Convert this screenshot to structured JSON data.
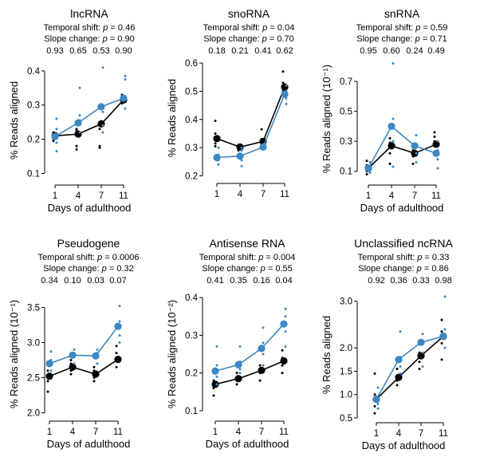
{
  "colors": {
    "old": "#3b88c4",
    "young": "#000000"
  },
  "chart_data": [
    {
      "type": "line",
      "title": "lncRNA",
      "temporal_shift": "Temporal shift: p = 0.46",
      "slope_change": "Slope change: p = 0.90",
      "pvalues": [
        "0.93",
        "0.65",
        "0.53",
        "0.90"
      ],
      "x": [
        1,
        4,
        7,
        11
      ],
      "xticks": [
        "1",
        "4",
        "7",
        "11"
      ],
      "xlabel": "Days of adulthood",
      "ylabel": "% Reads aligned",
      "ylim": [
        0.08,
        0.43
      ],
      "yticks": [
        0.1,
        0.2,
        0.3,
        0.4
      ],
      "ytick_labels": [
        "0.1",
        "0.2",
        "0.3",
        "0.4"
      ],
      "series": [
        {
          "name": "black",
          "color": "#000000",
          "values": [
            0.21,
            0.215,
            0.245,
            0.315
          ],
          "replicates": [
            [
              0.2,
              0.195,
              0.215,
              0.22
            ],
            [
              0.17,
              0.18,
              0.225,
              0.23
            ],
            [
              0.175,
              0.18,
              0.23,
              0.25
            ],
            [
              0.32,
              0.305,
              0.31,
              0.33
            ]
          ]
        },
        {
          "name": "blue",
          "color": "#3b88c4",
          "values": [
            0.208,
            0.248,
            0.295,
            0.32
          ],
          "replicates": [
            [
              0.165,
              0.19,
              0.23,
              0.26
            ],
            [
              0.22,
              0.255,
              0.27,
              0.35
            ],
            [
              0.22,
              0.24,
              0.28,
              0.41
            ],
            [
              0.29,
              0.32,
              0.375,
              0.385
            ]
          ]
        }
      ]
    },
    {
      "type": "line",
      "title": "snoRNA",
      "temporal_shift": "Temporal shift: p = 0.04",
      "slope_change": "Slope change: p = 0.70",
      "pvalues": [
        "0.18",
        "0.21",
        "0.41",
        "0.62"
      ],
      "x": [
        1,
        4,
        7,
        11
      ],
      "xticks": [
        "1",
        "4",
        "7",
        "11"
      ],
      "xlabel": "",
      "ylabel": "% Reads aligned",
      "ylim": [
        0.19,
        0.62
      ],
      "yticks": [
        0.2,
        0.3,
        0.4,
        0.5,
        0.6
      ],
      "ytick_labels": [
        "0.2",
        "0.3",
        "0.4",
        "0.5",
        "0.6"
      ],
      "series": [
        {
          "name": "black",
          "color": "#000000",
          "values": [
            0.332,
            0.302,
            0.322,
            0.515
          ],
          "replicates": [
            [
              0.305,
              0.315,
              0.35,
              0.395
            ],
            [
              0.27,
              0.29,
              0.295,
              0.31
            ],
            [
              0.31,
              0.32,
              0.33,
              0.365
            ],
            [
              0.49,
              0.5,
              0.53,
              0.57
            ]
          ]
        },
        {
          "name": "blue",
          "color": "#3b88c4",
          "values": [
            0.265,
            0.27,
            0.302,
            0.49
          ],
          "replicates": [
            [
              0.24,
              0.255,
              0.275,
              0.3
            ],
            [
              0.235,
              0.255,
              0.29,
              0.3
            ],
            [
              0.295,
              0.3,
              0.31,
              0.315
            ],
            [
              0.455,
              0.475,
              0.5,
              0.52
            ]
          ]
        }
      ]
    },
    {
      "type": "line",
      "title": "snRNA",
      "temporal_shift": "Temporal shift: p = 0.59",
      "slope_change": "Slope change: p = 0.71",
      "pvalues": [
        "0.95",
        "0.60",
        "0.24",
        "0.49"
      ],
      "x": [
        1,
        4,
        7,
        11
      ],
      "xticks": [
        "1",
        "4",
        "7",
        "11"
      ],
      "xlabel": "Days of adulthood",
      "ylabel": "% Reads aligned (10⁻¹)",
      "ylim": [
        0.04,
        0.86
      ],
      "yticks": [
        0.1,
        0.3,
        0.5,
        0.7
      ],
      "ytick_labels": [
        "0.1",
        "0.3",
        "0.5",
        "0.7"
      ],
      "series": [
        {
          "name": "black",
          "color": "#000000",
          "values": [
            0.12,
            0.27,
            0.22,
            0.28
          ],
          "replicates": [
            [
              0.08,
              0.1,
              0.14,
              0.17
            ],
            [
              0.15,
              0.22,
              0.29,
              0.32
            ],
            [
              0.15,
              0.2,
              0.24,
              0.27
            ],
            [
              0.22,
              0.3,
              0.33,
              0.36
            ]
          ]
        },
        {
          "name": "blue",
          "color": "#3b88c4",
          "values": [
            0.12,
            0.4,
            0.27,
            0.22
          ],
          "replicates": [
            [
              0.09,
              0.11,
              0.13,
              0.16
            ],
            [
              0.13,
              0.3,
              0.45,
              0.82
            ],
            [
              0.16,
              0.22,
              0.28,
              0.34
            ],
            [
              0.12,
              0.18,
              0.24,
              0.3
            ]
          ]
        }
      ]
    },
    {
      "type": "line",
      "title": "Pseudogene",
      "temporal_shift": "Temporal shift: p = 0.0006",
      "slope_change": "Slope change: p = 0.32",
      "pvalues": [
        "0.34",
        "0.10",
        "0.03",
        "0.07"
      ],
      "x": [
        1,
        4,
        7,
        11
      ],
      "xticks": [
        "1",
        "4",
        "7",
        "11"
      ],
      "xlabel": "Days of adulthood",
      "ylabel": "% Reads aligned (10⁻¹)",
      "ylim": [
        1.95,
        3.72
      ],
      "yticks": [
        2.0,
        2.5,
        3.0,
        3.5
      ],
      "ytick_labels": [
        "2.0",
        "2.5",
        "3.0",
        "3.5"
      ],
      "series": [
        {
          "name": "black",
          "color": "#000000",
          "values": [
            2.52,
            2.65,
            2.55,
            2.76
          ],
          "replicates": [
            [
              2.3,
              2.45,
              2.6,
              2.7
            ],
            [
              2.55,
              2.6,
              2.7,
              2.75
            ],
            [
              2.45,
              2.5,
              2.6,
              2.65
            ],
            [
              2.65,
              2.75,
              2.85,
              2.95
            ]
          ]
        },
        {
          "name": "blue",
          "color": "#3b88c4",
          "values": [
            2.7,
            2.82,
            2.81,
            3.23
          ],
          "replicates": [
            [
              2.6,
              2.7,
              2.75,
              2.87
            ],
            [
              2.7,
              2.8,
              2.85,
              2.9
            ],
            [
              2.7,
              2.8,
              2.85,
              2.9
            ],
            [
              3.0,
              3.1,
              3.3,
              3.52
            ]
          ]
        }
      ]
    },
    {
      "type": "line",
      "title": "Antisense RNA",
      "temporal_shift": "Temporal shift: p = 0.004",
      "slope_change": "Slope change: p = 0.55",
      "pvalues": [
        "0.41",
        "0.35",
        "0.16",
        "0.04"
      ],
      "x": [
        1,
        4,
        7,
        11
      ],
      "xticks": [
        "1",
        "4",
        "7",
        "11"
      ],
      "xlabel": "Days of adulthood",
      "ylabel": "% Reads aligned (10⁻²)",
      "ylim": [
        0.085,
        0.415
      ],
      "yticks": [
        0.1,
        0.2,
        0.3,
        0.4
      ],
      "ytick_labels": [
        "0.1",
        "0.2",
        "0.3",
        "0.4"
      ],
      "series": [
        {
          "name": "black",
          "color": "#000000",
          "values": [
            0.17,
            0.185,
            0.207,
            0.232
          ],
          "replicates": [
            [
              0.14,
              0.16,
              0.18,
              0.2
            ],
            [
              0.17,
              0.18,
              0.19,
              0.2
            ],
            [
              0.18,
              0.2,
              0.21,
              0.22
            ],
            [
              0.2,
              0.22,
              0.24,
              0.26
            ]
          ]
        },
        {
          "name": "blue",
          "color": "#3b88c4",
          "values": [
            0.205,
            0.222,
            0.265,
            0.33
          ],
          "replicates": [
            [
              0.17,
              0.19,
              0.22,
              0.27
            ],
            [
              0.2,
              0.21,
              0.23,
              0.27
            ],
            [
              0.22,
              0.25,
              0.28,
              0.32
            ],
            [
              0.27,
              0.31,
              0.35,
              0.37
            ]
          ]
        }
      ]
    },
    {
      "type": "line",
      "title": "Unclassified ncRNA",
      "temporal_shift": "Temporal shift: p = 0.33",
      "slope_change": "Slope change: p = 0.86",
      "pvalues": [
        "0.92",
        "0.36",
        "0.33",
        "0.98"
      ],
      "x": [
        1,
        4,
        7,
        11
      ],
      "xticks": [
        "1",
        "4",
        "7",
        "11"
      ],
      "xlabel": "Days of adulthood",
      "ylabel": "% Reads aligned",
      "ylim": [
        0.5,
        3.2
      ],
      "yticks": [
        0.5,
        1.0,
        1.5,
        2.0,
        3.0
      ],
      "ytick_labels": [
        "0.5",
        "1.0",
        "1.5",
        "2.0",
        "3.0"
      ],
      "series": [
        {
          "name": "black",
          "color": "#000000",
          "values": [
            0.9,
            1.37,
            1.83,
            2.25
          ],
          "replicates": [
            [
              0.6,
              0.75,
              1.0,
              1.45
            ],
            [
              1.2,
              1.3,
              1.4,
              1.55
            ],
            [
              1.55,
              1.7,
              1.9,
              2.15
            ],
            [
              1.75,
              2.1,
              2.35,
              2.6
            ]
          ]
        },
        {
          "name": "blue",
          "color": "#3b88c4",
          "values": [
            0.9,
            1.75,
            2.12,
            2.25
          ],
          "replicates": [
            [
              0.7,
              0.8,
              0.95,
              1.15
            ],
            [
              1.45,
              1.6,
              1.8,
              2.35
            ],
            [
              1.6,
              1.9,
              2.1,
              2.3
            ],
            [
              2.0,
              2.2,
              2.4,
              3.1
            ]
          ]
        }
      ]
    }
  ]
}
